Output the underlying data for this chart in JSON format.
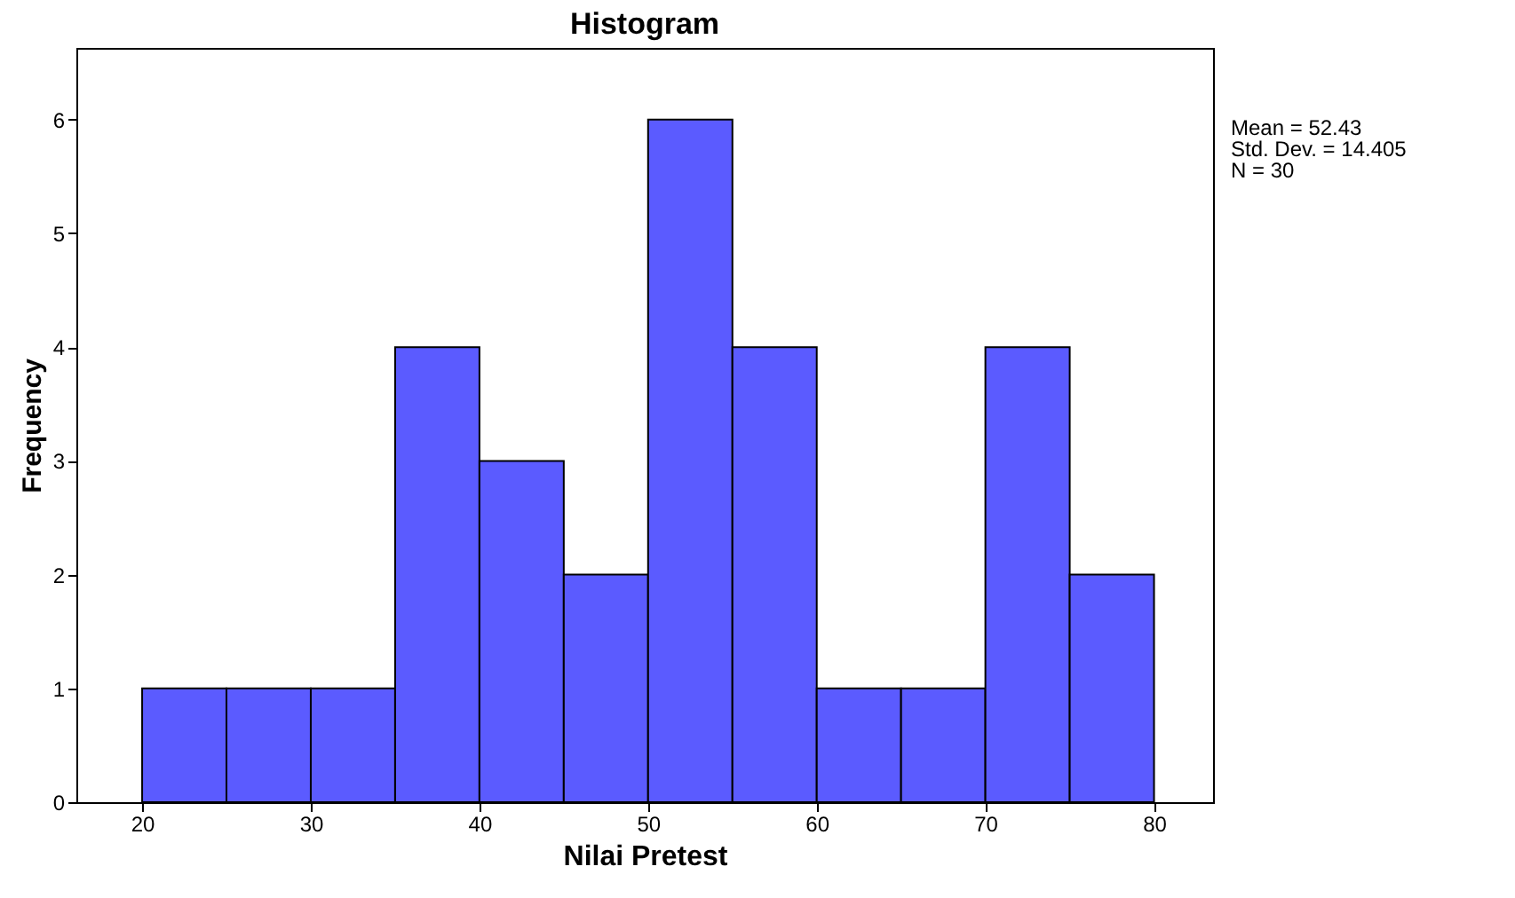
{
  "chart_data": {
    "type": "histogram",
    "title": "Histogram",
    "xlabel": "Nilai Pretest",
    "ylabel": "Frequency",
    "bins": [
      20,
      25,
      30,
      35,
      40,
      45,
      50,
      55,
      60,
      65,
      70,
      75,
      80
    ],
    "values": [
      1,
      1,
      1,
      4,
      3,
      2,
      6,
      4,
      1,
      1,
      4,
      2
    ],
    "color": "#5b5bff",
    "xlim": [
      16.1,
      83.5
    ],
    "xticks": [
      20,
      30,
      40,
      50,
      60,
      70,
      80
    ],
    "ylim": [
      0,
      6.63
    ],
    "yticks": [
      0,
      1,
      2,
      3,
      4,
      5,
      6
    ],
    "grid": false,
    "annotations": [
      "Mean = 52.43",
      "Std. Dev. = 14.405",
      "N = 30"
    ]
  }
}
